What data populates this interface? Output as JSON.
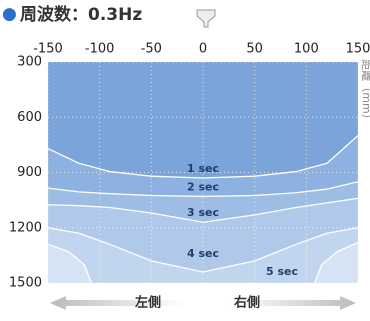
{
  "chart_data": {
    "type": "contour",
    "title_marker": "●",
    "title": "周波数：0.3Hz",
    "y_label": "距離（mm）",
    "left_label": "左側",
    "right_label": "右側",
    "xlim": [
      -150,
      150
    ],
    "xticks": [
      -150,
      -100,
      -50,
      0,
      50,
      100,
      150
    ],
    "ylim": [
      300,
      1500
    ],
    "yticks": [
      300,
      600,
      900,
      1200,
      1500
    ],
    "grid": true,
    "fill_color": "#7ba4da",
    "series": [
      {
        "name": "1 sec",
        "color": "#8db1e0",
        "x": [
          -150,
          -120,
          -90,
          -50,
          0,
          50,
          90,
          120,
          150
        ],
        "values": [
          770,
          850,
          895,
          920,
          930,
          920,
          895,
          850,
          700
        ]
      },
      {
        "name": "2 sec",
        "color": "#9ebde5",
        "x": [
          -150,
          -120,
          -90,
          -50,
          0,
          50,
          90,
          120,
          150
        ],
        "values": [
          985,
          1005,
          1015,
          1025,
          1030,
          1025,
          1010,
          990,
          950
        ]
      },
      {
        "name": "3 sec",
        "color": "#b0c9ea",
        "x": [
          -150,
          -120,
          -90,
          -50,
          0,
          50,
          90,
          120,
          150
        ],
        "values": [
          1075,
          1080,
          1090,
          1120,
          1170,
          1130,
          1090,
          1065,
          1040
        ]
      },
      {
        "name": "4 sec",
        "color": "#c2d5ef",
        "x": [
          -150,
          -120,
          -90,
          -50,
          0,
          50,
          90,
          120,
          150
        ],
        "values": [
          1200,
          1230,
          1290,
          1380,
          1440,
          1380,
          1290,
          1230,
          1200
        ]
      },
      {
        "name": "5 sec",
        "color": "#d6e3f5",
        "x": [
          -150,
          -130,
          -115,
          -108,
          0,
          108,
          115,
          130,
          150
        ],
        "values": [
          1290,
          1330,
          1400,
          1500,
          null,
          1500,
          1400,
          1330,
          1280
        ]
      }
    ]
  }
}
